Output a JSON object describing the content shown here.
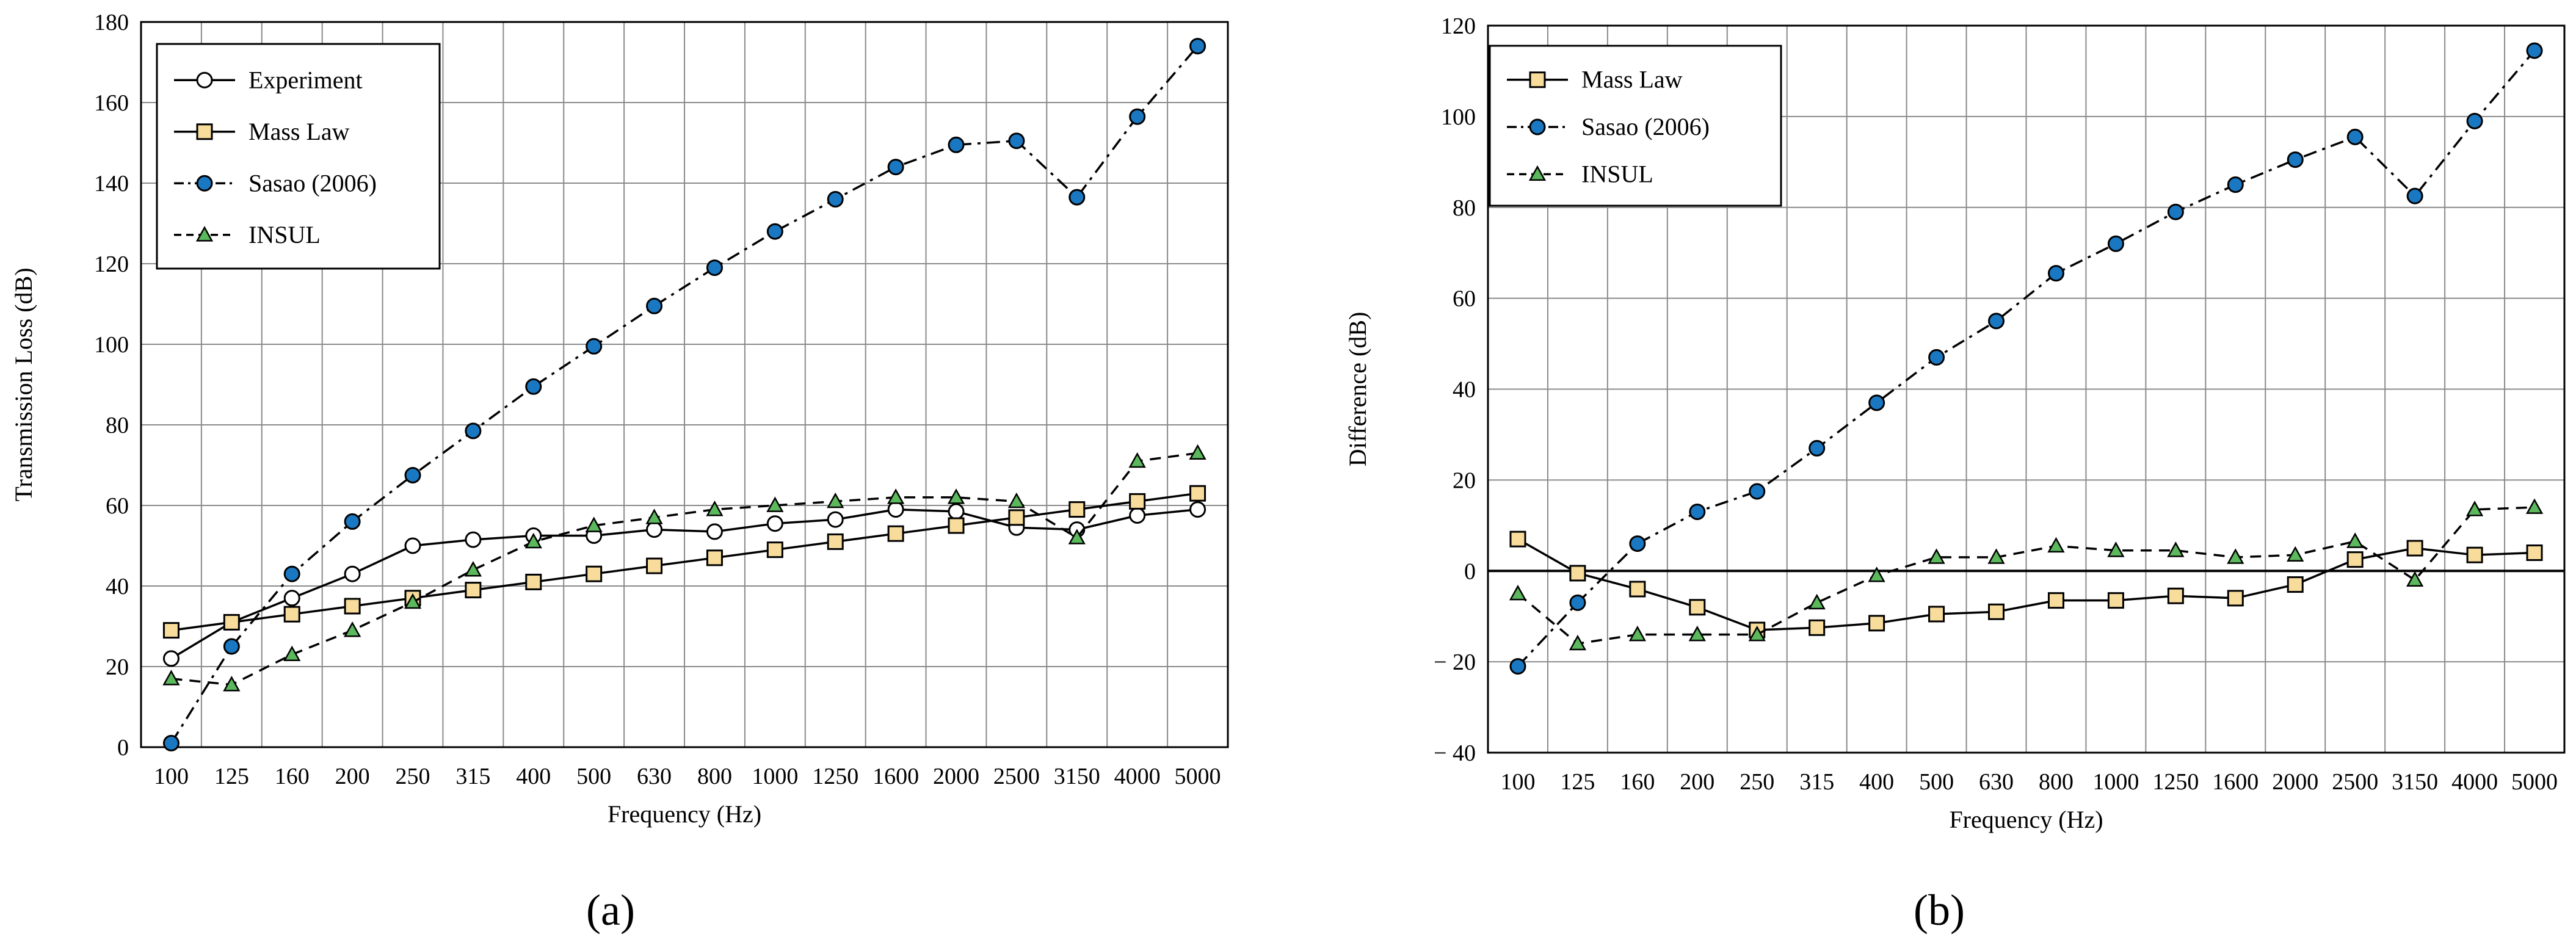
{
  "chart_data": [
    {
      "type": "line",
      "panel_label": "(a)",
      "xlabel": "Frequency (Hz)",
      "ylabel": "Transmission Loss (dB)",
      "ylim": [
        0,
        180
      ],
      "yticks": [
        "0",
        "20",
        "40",
        "60",
        "80",
        "100",
        "120",
        "140",
        "160",
        "180"
      ],
      "categories": [
        "100",
        "125",
        "160",
        "200",
        "250",
        "315",
        "400",
        "500",
        "630",
        "800",
        "1000",
        "1250",
        "1600",
        "2000",
        "2500",
        "3150",
        "4000",
        "5000"
      ],
      "grid": true,
      "legend_position": "top-left",
      "series": [
        {
          "name": "Experiment",
          "style": "solid",
          "marker": "circle",
          "color": "#000000",
          "fill": "#ffffff",
          "values": [
            22,
            31,
            37,
            43,
            50,
            51.5,
            52.5,
            52.5,
            54,
            53.5,
            55.5,
            56.5,
            59,
            58.5,
            54.5,
            54,
            57.5,
            59
          ]
        },
        {
          "name": "Mass Law",
          "style": "solid",
          "marker": "square",
          "color": "#000000",
          "fill": "#f7dc9c",
          "values": [
            29,
            31,
            33,
            35,
            37,
            39,
            41,
            43,
            45,
            47,
            49,
            51,
            53,
            55,
            57,
            59,
            61,
            63
          ]
        },
        {
          "name": "Sasao (2006)",
          "style": "dashdot",
          "marker": "circle",
          "color": "#000000",
          "fill": "#1a78c2",
          "values": [
            1,
            25,
            43,
            56,
            67.5,
            78.5,
            89.5,
            99.5,
            109.5,
            119,
            128,
            136,
            144,
            149.5,
            150.5,
            136.5,
            156.5,
            174
          ]
        },
        {
          "name": "INSUL",
          "style": "dashed",
          "marker": "triangle",
          "color": "#000000",
          "fill": "#5cb85c",
          "values": [
            17,
            15.5,
            23,
            29,
            36,
            44,
            51,
            55,
            57,
            59,
            60,
            61,
            62,
            62,
            61,
            52,
            71,
            73
          ]
        }
      ]
    },
    {
      "type": "line",
      "panel_label": "(b)",
      "xlabel": "Frequency (Hz)",
      "ylabel": "Difference (dB)",
      "ylim": [
        -40,
        120
      ],
      "yticks": [
        "− 40",
        "− 20",
        "0",
        "20",
        "40",
        "60",
        "80",
        "100",
        "120"
      ],
      "categories": [
        "100",
        "125",
        "160",
        "200",
        "250",
        "315",
        "400",
        "500",
        "630",
        "800",
        "1000",
        "1250",
        "1600",
        "2000",
        "2500",
        "3150",
        "4000",
        "5000"
      ],
      "grid": true,
      "legend_position": "top-left",
      "series": [
        {
          "name": "Mass Law",
          "style": "solid",
          "marker": "square",
          "color": "#000000",
          "fill": "#f7dc9c",
          "values": [
            7,
            -0.5,
            -4,
            -8,
            -13,
            -12.5,
            -11.5,
            -9.5,
            -9,
            -6.5,
            -6.5,
            -5.5,
            -6,
            -3,
            2.5,
            5,
            3.5,
            4
          ]
        },
        {
          "name": "Sasao (2006)",
          "style": "dashdot",
          "marker": "circle",
          "color": "#000000",
          "fill": "#1a78c2",
          "values": [
            -21,
            -7,
            6,
            13,
            17.5,
            27,
            37,
            47,
            55,
            65.5,
            72,
            79,
            85,
            90.5,
            95.5,
            82.5,
            99,
            114.5
          ]
        },
        {
          "name": "INSUL",
          "style": "dashed",
          "marker": "triangle",
          "color": "#000000",
          "fill": "#5cb85c",
          "values": [
            -5,
            -16,
            -14,
            -14,
            -14,
            -7,
            -1,
            3,
            3,
            5.5,
            4.5,
            4.5,
            3,
            3.5,
            6.5,
            -2,
            13.5,
            14
          ]
        }
      ]
    }
  ]
}
